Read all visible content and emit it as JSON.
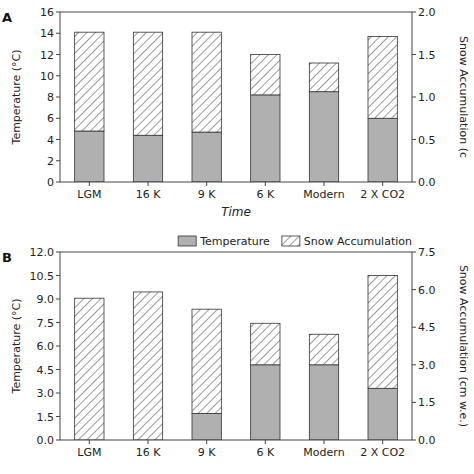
{
  "chart_data": [
    {
      "type": "bar",
      "stacked": true,
      "title": "A",
      "categories": [
        "LGM",
        "16 K",
        "9 K",
        "6 K",
        "Modern",
        "2 X CO2"
      ],
      "series": [
        {
          "name": "Temperature",
          "color": "#b0b0b0",
          "values": [
            4.8,
            4.4,
            4.7,
            8.2,
            8.5,
            6.0
          ]
        },
        {
          "name": "Snow Accumulation",
          "color": "#808080",
          "values": [
            9.3,
            9.7,
            9.4,
            3.8,
            2.7,
            7.7
          ]
        }
      ],
      "xlabel": "Time",
      "ylabel": "Temperature (°C)",
      "y2label": "Snow Accumulation (c",
      "ylim": [
        0,
        16
      ],
      "yticks": [
        0,
        2,
        4,
        6,
        8,
        10,
        12,
        14,
        16
      ],
      "y2lim": [
        0,
        2
      ],
      "y2ticks": [
        {
          "value": 0,
          "label": "0.0"
        },
        0.5,
        {
          "value": 1,
          "label": "1.0"
        },
        1.5,
        {
          "value": 2,
          "label": "2.0"
        }
      ],
      "grid": false
    },
    {
      "type": "bar",
      "stacked": true,
      "title": "B",
      "categories": [
        "LGM",
        "16 K",
        "9 K",
        "6 K",
        "Modern",
        "2 X CO2"
      ],
      "series": [
        {
          "name": "Temperature",
          "color": "#b0b0b0",
          "values": [
            0.0,
            0.0,
            1.7,
            4.8,
            4.8,
            3.3
          ]
        },
        {
          "name": "Snow Accumulation",
          "color": "#808080",
          "values": [
            9.05,
            9.45,
            6.65,
            2.65,
            1.95,
            7.2
          ]
        }
      ],
      "ylabel": "Temperature (°C)",
      "y2label": "Snow Accumulation (cm w.e.)",
      "ylim": [
        0,
        12
      ],
      "yticks": [
        {
          "value": 0,
          "label": "0.0"
        },
        1.5,
        {
          "value": 3,
          "label": "3.0"
        },
        4.5,
        {
          "value": 6,
          "label": "6.0"
        },
        7.5,
        {
          "value": 9,
          "label": "9.0"
        },
        10.5,
        {
          "value": 12,
          "label": "12.0"
        }
      ],
      "y2lim": [
        0,
        7.5
      ],
      "y2ticks": [
        {
          "value": 0,
          "label": "0.0"
        },
        1.5,
        {
          "value": 3,
          "label": "3.0"
        },
        4.5,
        {
          "value": 6,
          "label": "6.0"
        },
        7.5
      ],
      "legend": "upper right",
      "grid": false
    }
  ]
}
